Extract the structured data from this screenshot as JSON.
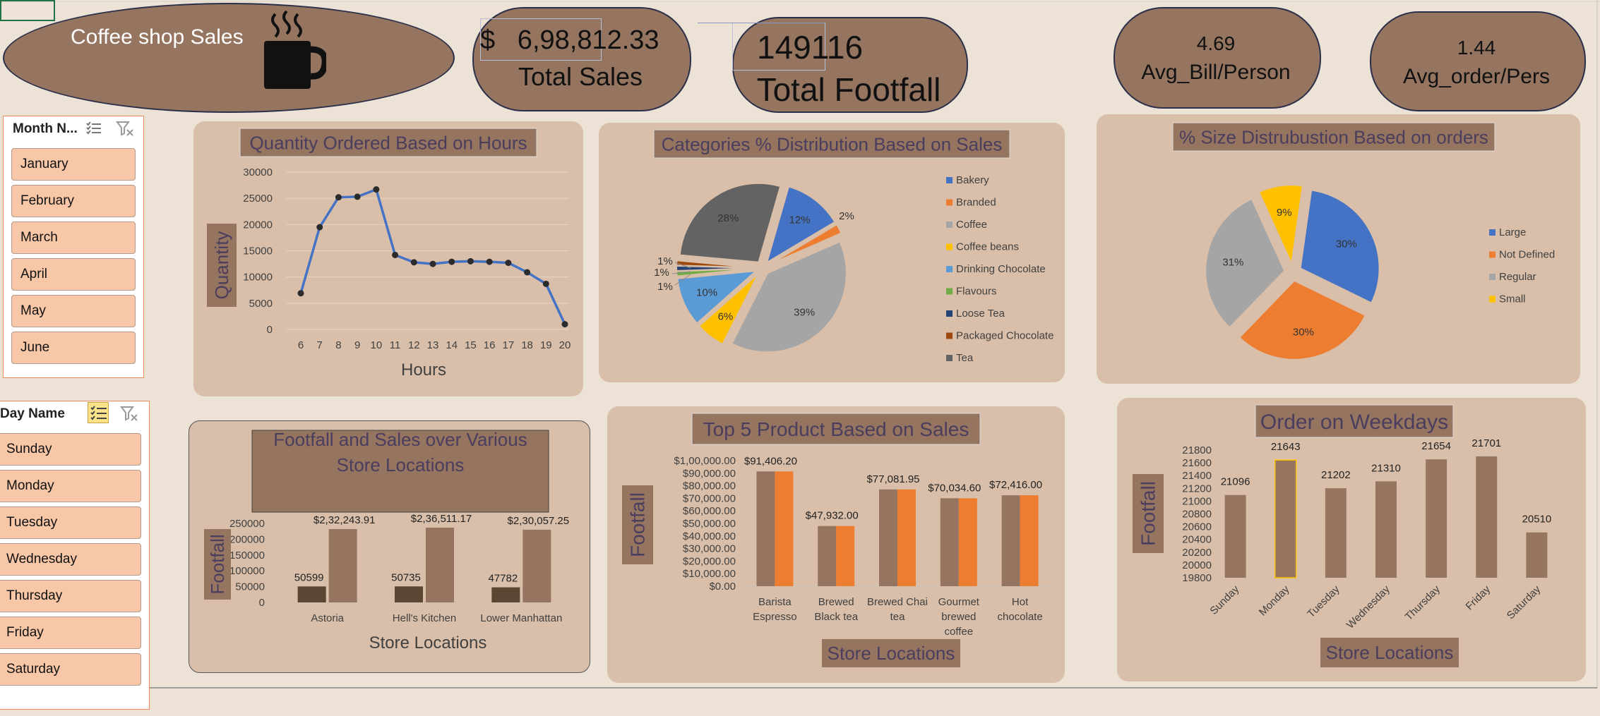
{
  "header": {
    "title": "Coffee  shop Sales",
    "kpis": [
      {
        "value": "$   6,98,812.33",
        "label": "Total Sales"
      },
      {
        "value": "149116",
        "label": "Total Footfall"
      },
      {
        "value": "4.69",
        "label": "Avg_Bill/Person"
      },
      {
        "value": "1.44",
        "label": "Avg_order/Pers"
      }
    ]
  },
  "slicers": {
    "month": {
      "title": "Month N...",
      "items": [
        "January",
        "February",
        "March",
        "April",
        "May",
        "June"
      ]
    },
    "day": {
      "title": "Day Name",
      "items": [
        "Sunday",
        "Monday",
        "Tuesday",
        "Wednesday",
        "Thursday",
        "Friday",
        "Saturday"
      ]
    }
  },
  "colors": {
    "brown": "#957560",
    "dark_brown": "#5b4634",
    "orange": "#ed7d31",
    "line_blue": "#4472c4",
    "panel": "#d9bfa9",
    "background": "#ece3d6"
  },
  "chart_data": [
    {
      "id": "hours",
      "type": "line",
      "title": "Quantity Ordered Based on Hours",
      "xlabel": "Hours",
      "ylabel": "Quantity",
      "x": [
        "6",
        "7",
        "8",
        "9",
        "10",
        "11",
        "12",
        "13",
        "14",
        "15",
        "16",
        "17",
        "18",
        "19",
        "20"
      ],
      "values": [
        6900,
        19500,
        25200,
        25300,
        26700,
        14200,
        12800,
        12500,
        12900,
        13000,
        12900,
        12700,
        10900,
        8700,
        1000
      ],
      "yticks": [
        "0",
        "5000",
        "10000",
        "15000",
        "20000",
        "25000",
        "30000"
      ],
      "ylim": [
        0,
        30000
      ],
      "grid": true
    },
    {
      "id": "categories",
      "type": "pie",
      "title": "Categories  % Distribution Based on Sales",
      "legend": [
        "Bakery",
        "Branded",
        "Coffee",
        "Coffee beans",
        "Drinking Chocolate",
        "Flavours",
        "Loose Tea",
        "Packaged Chocolate",
        "Tea"
      ],
      "values": [
        12,
        2,
        39,
        6,
        10,
        1,
        1,
        1,
        28
      ],
      "labels": [
        "12%",
        "2%",
        "39%",
        "6%",
        "10%",
        "1%",
        "1%",
        "1%",
        "28%"
      ],
      "colors": [
        "#4472c4",
        "#ed7d31",
        "#a5a5a5",
        "#ffc000",
        "#5b9bd5",
        "#70ad47",
        "#264478",
        "#9e480e",
        "#636363"
      ],
      "legend_position": "right"
    },
    {
      "id": "sizes",
      "type": "pie",
      "title": "% Size Distrubustion Based on orders",
      "legend": [
        "Large",
        "Not Defined",
        "Regular",
        "Small"
      ],
      "values": [
        30,
        30,
        31,
        9
      ],
      "labels": [
        "30%",
        "30%",
        "31%",
        "9%"
      ],
      "colors": [
        "#4472c4",
        "#ed7d31",
        "#a5a5a5",
        "#ffc000"
      ],
      "legend_position": "right"
    },
    {
      "id": "stores",
      "type": "bar",
      "title": "Footfall and Sales over Various Store Locations",
      "xlabel": "Store Locations",
      "ylabel": "Footfall",
      "categories": [
        "Astoria",
        "Hell's Kitchen",
        "Lower Manhattan"
      ],
      "series": [
        {
          "values": [
            50599,
            50735,
            47782
          ],
          "labels": [
            "50599",
            "50735",
            "47782"
          ],
          "color": "#5b4634"
        },
        {
          "values": [
            232243.91,
            236511.17,
            230057.25
          ],
          "labels": [
            "$2,32,243.91",
            "$2,36,511.17",
            "$2,30,057.25"
          ],
          "color": "#957560"
        }
      ],
      "yticks": [
        "0",
        "50000",
        "100000",
        "150000",
        "200000",
        "250000"
      ],
      "ylim": [
        0,
        250000
      ]
    },
    {
      "id": "products",
      "type": "bar",
      "title": "Top 5 Product Based on Sales",
      "xlabel": "Store Locations",
      "ylabel": "Footfall",
      "categories": [
        "Barista Espresso",
        "Brewed Black tea",
        "Brewed Chai tea",
        "Gourmet brewed coffee",
        "Hot chocolate"
      ],
      "category_lines": [
        [
          "Barista",
          "Espresso"
        ],
        [
          "Brewed",
          "Black tea"
        ],
        [
          "Brewed Chai",
          "tea"
        ],
        [
          "Gourmet",
          "brewed",
          "coffee"
        ],
        [
          "Hot",
          "chocolate"
        ]
      ],
      "values": [
        91406.2,
        47932.0,
        77081.95,
        70034.6,
        72416.0
      ],
      "labels": [
        "$91,406.20",
        "$47,932.00",
        "$77,081.95",
        "$70,034.60",
        "$72,416.00"
      ],
      "yticks": [
        "$0.00",
        "$10,000.00",
        "$20,000.00",
        "$30,000.00",
        "$40,000.00",
        "$50,000.00",
        "$60,000.00",
        "$70,000.00",
        "$80,000.00",
        "$90,000.00",
        "$1,00,000.00"
      ],
      "ylim": [
        0,
        100000
      ]
    },
    {
      "id": "weekdays",
      "type": "bar",
      "title": "Order on Weekdays",
      "xlabel": "Store Locations",
      "ylabel": "Footfall",
      "categories": [
        "Sunday",
        "Monday",
        "Tuesday",
        "Wednesday",
        "Thursday",
        "Friday",
        "Saturday"
      ],
      "values": [
        21096,
        21643,
        21202,
        21310,
        21654,
        21701,
        20510
      ],
      "labels": [
        "21096",
        "21643",
        "21202",
        "21310",
        "21654",
        "21701",
        "20510"
      ],
      "yticks": [
        "19800",
        "20000",
        "20200",
        "20400",
        "20600",
        "20800",
        "21000",
        "21200",
        "21400",
        "21600",
        "21800"
      ],
      "ylim": [
        19800,
        21800
      ]
    }
  ]
}
